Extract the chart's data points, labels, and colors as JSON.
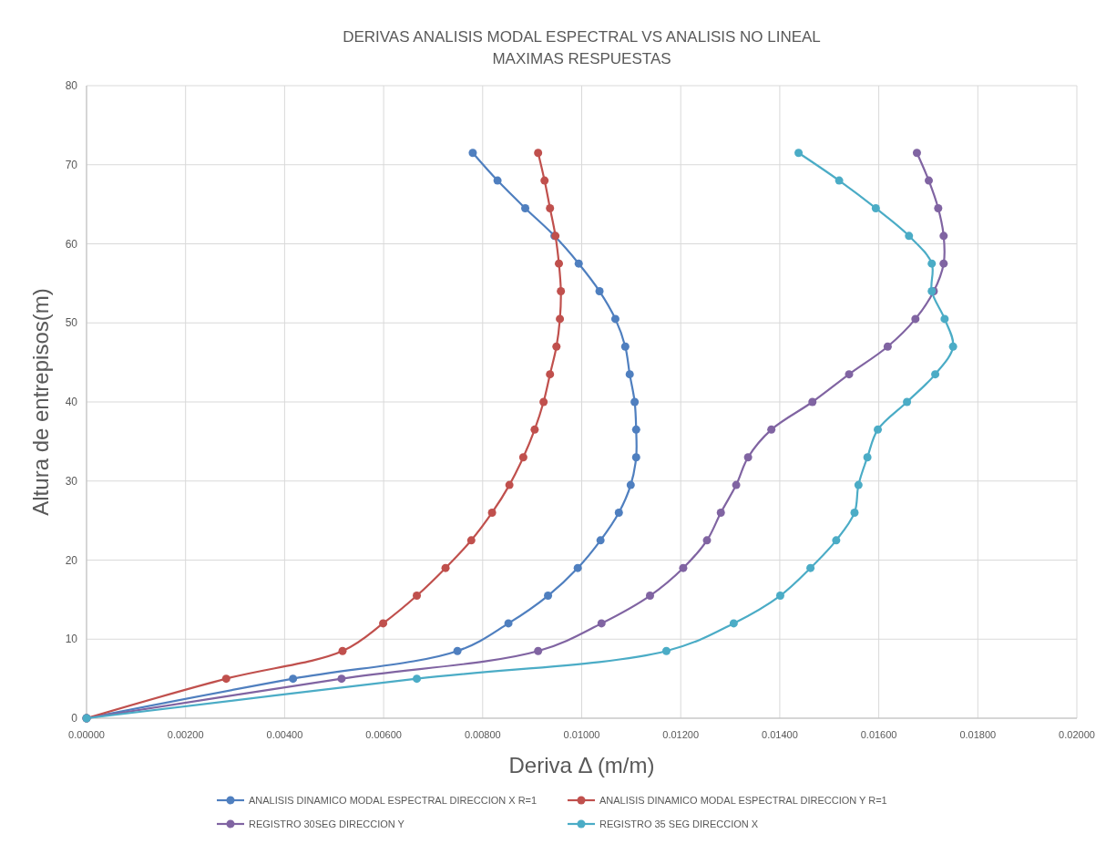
{
  "chart_data": {
    "type": "line",
    "title": "DERIVAS ANALISIS MODAL ESPECTRAL VS ANALISIS NO LINEAL",
    "subtitle": "MAXIMAS RESPUESTAS",
    "xlabel": "Deriva Δ (m/m)",
    "ylabel": "Altura de entrepisos(m)",
    "xlim": [
      0,
      0.02
    ],
    "xticks": [
      {
        "value": 0,
        "label": "0.00000"
      },
      {
        "value": 0.002,
        "label": "0.00200"
      },
      {
        "value": 0.004,
        "label": "0.00400"
      },
      {
        "value": 0.006,
        "label": "0.00600"
      },
      {
        "value": 0.008,
        "label": "0.00800"
      },
      {
        "value": 0.01,
        "label": "0.01000"
      },
      {
        "value": 0.012,
        "label": "0.01200"
      },
      {
        "value": 0.014,
        "label": "0.01400"
      },
      {
        "value": 0.016,
        "label": "0.01600"
      },
      {
        "value": 0.018,
        "label": "0.01800"
      },
      {
        "value": 0.02,
        "label": "0.02000"
      }
    ],
    "ylim": [
      0,
      80
    ],
    "yticks": [
      0,
      10,
      20,
      30,
      40,
      50,
      60,
      70,
      80
    ],
    "grid": true,
    "legend": "bottom",
    "marker": "circle",
    "line_style": "solid",
    "series": [
      {
        "name": "ANALISIS DINAMICO MODAL ESPECTRAL DIRECCION X R=1",
        "color": "#4f7fbf",
        "x": [
          0,
          0.00417,
          0.00749,
          0.00852,
          0.00932,
          0.00992,
          0.01038,
          0.01075,
          0.01099,
          0.0111,
          0.0111,
          0.01107,
          0.01097,
          0.01088,
          0.01068,
          0.01036,
          0.00994,
          0.00945,
          0.00886,
          0.0083,
          0.0078
        ],
        "values": [
          0,
          5,
          8.5,
          12,
          15.5,
          19,
          22.5,
          26,
          29.5,
          33,
          36.5,
          40,
          43.5,
          47,
          50.5,
          54,
          57.5,
          61,
          64.5,
          68,
          71.5
        ]
      },
      {
        "name": "ANALISIS DINAMICO MODAL ESPECTRAL DIRECCION Y R=1",
        "color": "#c0504d",
        "x": [
          0,
          0.00282,
          0.00517,
          0.00599,
          0.00667,
          0.00725,
          0.00777,
          0.00819,
          0.00854,
          0.00882,
          0.00905,
          0.00923,
          0.00936,
          0.00949,
          0.00956,
          0.00958,
          0.00954,
          0.00947,
          0.00936,
          0.00925,
          0.00912
        ],
        "values": [
          0,
          5,
          8.5,
          12,
          15.5,
          19,
          22.5,
          26,
          29.5,
          33,
          36.5,
          40,
          43.5,
          47,
          50.5,
          54,
          57.5,
          61,
          64.5,
          68,
          71.5
        ]
      },
      {
        "name": "REGISTRO 30SEG DIRECCION Y",
        "color": "#8064a2",
        "x": [
          0,
          0.00515,
          0.00912,
          0.0104,
          0.01138,
          0.01205,
          0.01253,
          0.01281,
          0.01312,
          0.01336,
          0.01383,
          0.01466,
          0.0154,
          0.01618,
          0.01674,
          0.01711,
          0.01731,
          0.01731,
          0.0172,
          0.01701,
          0.01677
        ],
        "values": [
          0,
          5,
          8.5,
          12,
          15.5,
          19,
          22.5,
          26,
          29.5,
          33,
          36.5,
          40,
          43.5,
          47,
          50.5,
          54,
          57.5,
          61,
          64.5,
          68,
          71.5
        ]
      },
      {
        "name": "REGISTRO 35 SEG DIRECCION X",
        "color": "#4bacc6",
        "x": [
          0,
          0.00667,
          0.01171,
          0.01307,
          0.01401,
          0.01462,
          0.01514,
          0.01551,
          0.01559,
          0.01577,
          0.01598,
          0.01657,
          0.01714,
          0.0175,
          0.01733,
          0.01707,
          0.01707,
          0.01661,
          0.01594,
          0.0152,
          0.01438
        ],
        "values": [
          0,
          5,
          8.5,
          12,
          15.5,
          19,
          22.5,
          26,
          29.5,
          33,
          36.5,
          40,
          43.5,
          47,
          50.5,
          54,
          57.5,
          61,
          64.5,
          68,
          71.5
        ]
      }
    ]
  }
}
